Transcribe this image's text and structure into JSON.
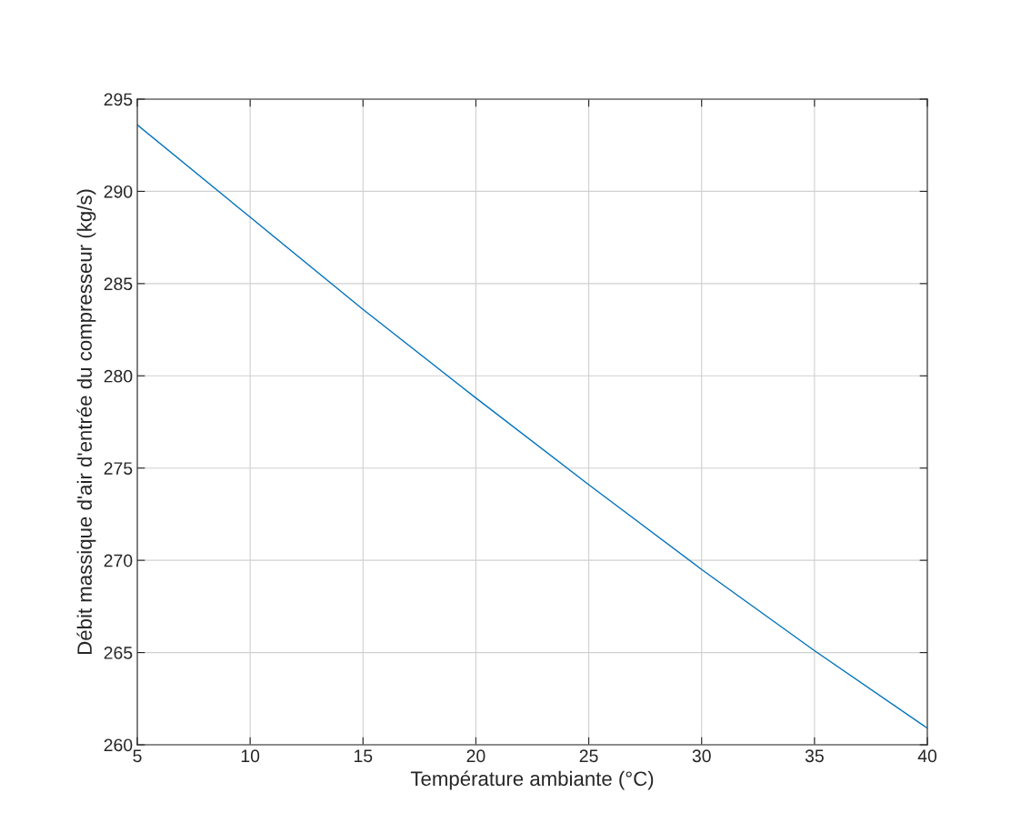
{
  "chart_data": {
    "type": "line",
    "xlabel": "Température ambiante (°C)",
    "ylabel": "Débit massique d'air d'entrée du compresseur (kg/s)",
    "x": [
      5,
      10,
      15,
      20,
      25,
      30,
      35,
      40
    ],
    "series": [
      {
        "color": "#0072bd",
        "values": [
          293.6,
          288.6,
          283.6,
          278.8,
          274.1,
          269.5,
          265.1,
          260.9
        ]
      }
    ],
    "xlim": [
      5,
      40
    ],
    "xticks": [
      5,
      10,
      15,
      20,
      25,
      30,
      35,
      40
    ],
    "ylim": [
      260,
      295
    ],
    "yticks": [
      260,
      265,
      270,
      275,
      280,
      285,
      290,
      295
    ],
    "grid": true,
    "marker": "none",
    "line_style": "solid"
  }
}
